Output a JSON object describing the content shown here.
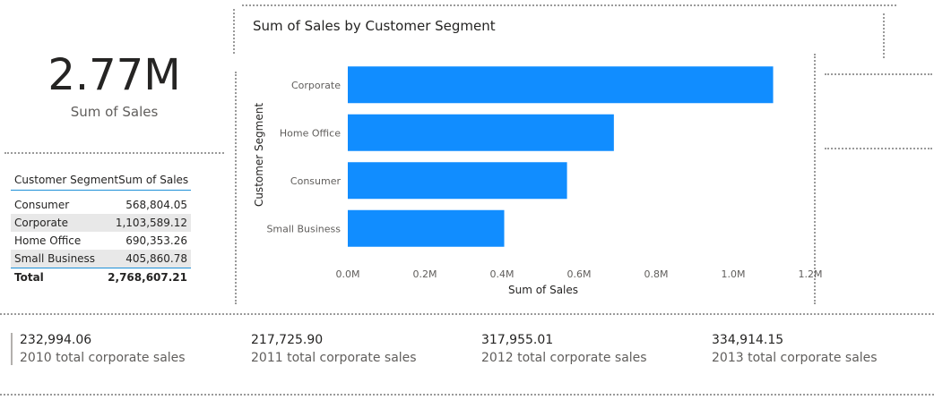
{
  "kpi": {
    "value": "2.77M",
    "label": "Sum of Sales"
  },
  "table": {
    "headers": [
      "Customer Segment",
      "Sum of Sales"
    ],
    "rows": [
      [
        "Consumer",
        "568,804.05"
      ],
      [
        "Corporate",
        "1,103,589.12"
      ],
      [
        "Home Office",
        "690,353.26"
      ],
      [
        "Small Business",
        "405,860.78"
      ]
    ],
    "total": [
      "Total",
      "2,768,607.21"
    ]
  },
  "chart": {
    "title": "Sum of Sales by Customer Segment",
    "bar_color": "#118DFF"
  },
  "chart_data": {
    "type": "bar",
    "orientation": "horizontal",
    "categories": [
      "Corporate",
      "Home Office",
      "Consumer",
      "Small Business"
    ],
    "values": [
      1103589.12,
      690353.26,
      568804.05,
      405860.78
    ],
    "xlabel": "Sum of Sales",
    "ylabel": "Customer Segment",
    "xlim": [
      0,
      1200000
    ],
    "xticks": [
      "0.0M",
      "0.2M",
      "0.4M",
      "0.6M",
      "0.8M",
      "1.0M",
      "1.2M"
    ],
    "grid": false
  },
  "stats": [
    {
      "value": "232,994.06",
      "label": "2010 total corporate sales"
    },
    {
      "value": "217,725.90",
      "label": "2011 total corporate sales"
    },
    {
      "value": "317,955.01",
      "label": "2012 total corporate sales"
    },
    {
      "value": "334,914.15",
      "label": "2013 total corporate sales"
    }
  ]
}
